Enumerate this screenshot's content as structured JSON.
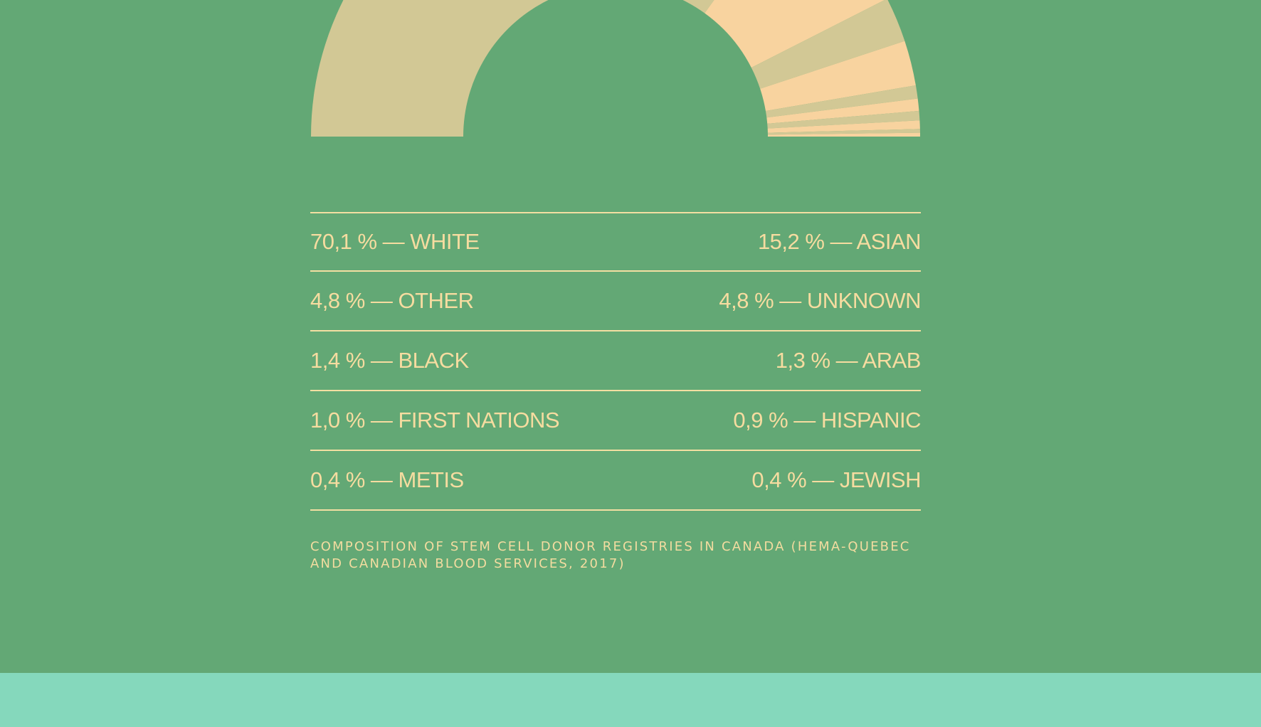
{
  "colors": {
    "background": "#63a875",
    "text": "#f6dca0",
    "rule": "#f3dfa2",
    "slice_light": "#f8d39f",
    "slice_muted": "#d2c895",
    "footer": "#85d8bc"
  },
  "chart_data": {
    "type": "pie",
    "variant": "half-donut",
    "series": [
      {
        "name": "WHITE",
        "value": 70.1,
        "label": "70,1 %"
      },
      {
        "name": "ASIAN",
        "value": 15.2,
        "label": "15,2 %"
      },
      {
        "name": "OTHER",
        "value": 4.8,
        "label": "4,8 %"
      },
      {
        "name": "UNKNOWN",
        "value": 4.8,
        "label": "4,8 %"
      },
      {
        "name": "BLACK",
        "value": 1.4,
        "label": "1,4 %"
      },
      {
        "name": "ARAB",
        "value": 1.3,
        "label": "1,3 %"
      },
      {
        "name": "FIRST NATIONS",
        "value": 1.0,
        "label": "1,0 %"
      },
      {
        "name": "HISPANIC",
        "value": 0.9,
        "label": "0,9 %"
      },
      {
        "name": "METIS",
        "value": 0.4,
        "label": "0,4 %"
      },
      {
        "name": "JEWISH",
        "value": 0.4,
        "label": "0,4 %"
      }
    ],
    "slice_colors": [
      "#d2c895",
      "#f8d39f",
      "#d2c895",
      "#f8d39f",
      "#d2c895",
      "#f8d39f",
      "#d2c895",
      "#f8d39f",
      "#d2c895",
      "#f8d39f"
    ],
    "legend": [
      {
        "left": "70,1 % — WHITE",
        "right": "15,2 % — ASIAN"
      },
      {
        "left": "4,8 % — OTHER",
        "right": "4,8 % — UNKNOWN"
      },
      {
        "left": "1,4 % — BLACK",
        "right": "1,3 % — ARAB"
      },
      {
        "left": "1,0 % — FIRST NATIONS",
        "right": "0,9 % — HISPANIC"
      },
      {
        "left": "0,4 % — METIS",
        "right": "0,4 % — JEWISH"
      }
    ],
    "caption": "COMPOSITION OF STEM CELL DONOR REGISTRIES IN CANADA (HEMA-QUEBEC AND CANADIAN BLOOD SERVICES, 2017)"
  }
}
